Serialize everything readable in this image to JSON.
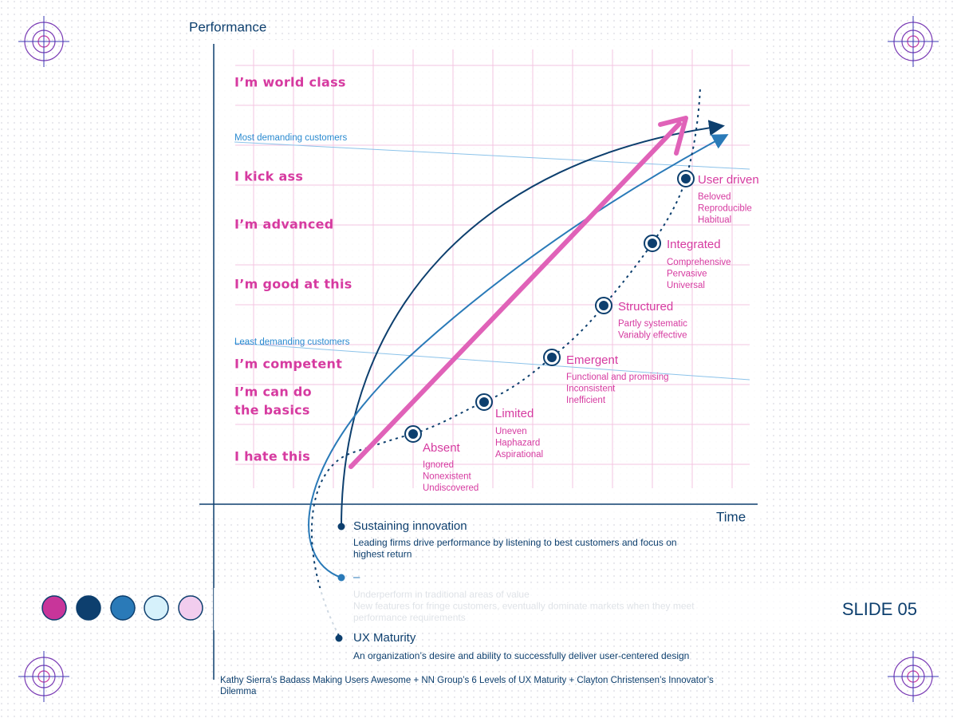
{
  "axis": {
    "y_label": "Performance",
    "x_label": "Time"
  },
  "levels": [
    {
      "lines": [
        "I’m world class"
      ]
    },
    {
      "lines": [
        "I kick ass"
      ]
    },
    {
      "lines": [
        "I’m advanced"
      ]
    },
    {
      "lines": [
        "I’m good at this"
      ]
    },
    {
      "lines": [
        "I’m competent"
      ]
    },
    {
      "lines": [
        "I’m can do",
        "the basics"
      ]
    },
    {
      "lines": [
        "I hate this"
      ]
    }
  ],
  "segments": [
    "Most demanding customers",
    "Least demanding customers"
  ],
  "stages": [
    {
      "name": "Absent",
      "traits": [
        "Ignored",
        "Nonexistent",
        "Undiscovered"
      ]
    },
    {
      "name": "Limited",
      "traits": [
        "Uneven",
        "Haphazard",
        "Aspirational"
      ]
    },
    {
      "name": "Emergent",
      "traits": [
        "Functional and promising",
        "Inconsistent",
        "Inefficient"
      ]
    },
    {
      "name": "Structured",
      "traits": [
        "Partly systematic",
        "Variably effective"
      ]
    },
    {
      "name": "Integrated",
      "traits": [
        "Comprehensive",
        "Pervasive",
        "Universal"
      ]
    },
    {
      "name": "User driven",
      "traits": [
        "Beloved",
        "Reproducible",
        "Habitual"
      ]
    }
  ],
  "legend": [
    {
      "title": "Sustaining innovation",
      "description": [
        "Leading firms drive performance by listening to best customers and focus on",
        "highest return"
      ]
    },
    {
      "title": "–",
      "description": [
        "Underperform in traditional areas of value",
        "New features for fringe customers, eventually dominate markets when they meet",
        "performance requirements"
      ]
    },
    {
      "title": "UX Maturity",
      "description": [
        "An organization’s desire and ability to successfully deliver user-centered design"
      ]
    }
  ],
  "slide": "SLIDE 05",
  "footer": [
    "Kathy Sierra’s Badass Making Users Awesome + NN Group’s 6 Levels of UX Maturity + Clayton Christensen’s Innovator’s",
    "Dilemma"
  ]
}
